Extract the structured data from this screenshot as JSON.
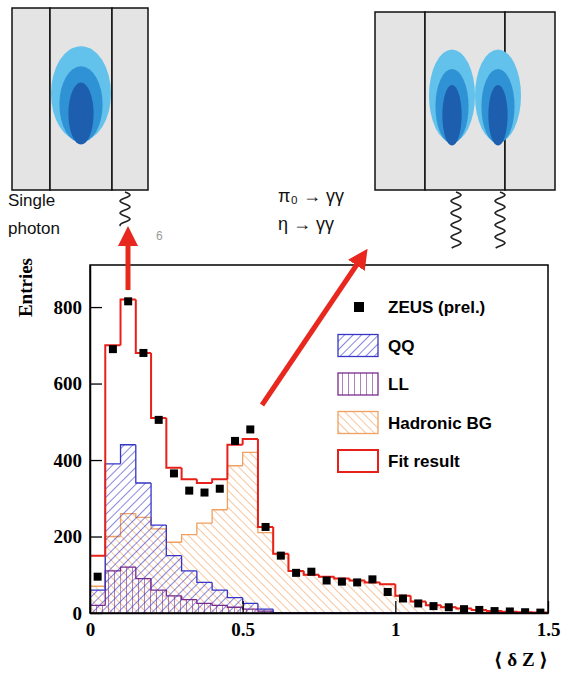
{
  "chart_data": {
    "type": "histogram",
    "x_label": "⟨ δ Z ⟩",
    "y_label": "Entries",
    "annotations": [
      "Single photon",
      "π₀ → γγ",
      "η → γγ",
      "6"
    ],
    "bins": [
      0,
      0.05,
      0.1,
      0.15,
      0.2,
      0.25,
      0.3,
      0.35,
      0.4,
      0.45,
      0.5,
      0.55,
      0.6,
      0.65,
      0.7,
      0.75,
      0.8,
      0.85,
      0.9,
      0.95,
      1,
      1.05,
      1.1,
      1.15,
      1.2,
      1.25,
      1.3,
      1.35,
      1.4,
      1.45,
      1.5
    ],
    "xlim": [
      0,
      1.5
    ],
    "ylim": [
      0,
      910
    ],
    "xticks": [
      0,
      0.5,
      1,
      1.5
    ],
    "yticks": [
      0,
      200,
      400,
      600,
      800
    ],
    "legend": "top-right",
    "series": [
      {
        "name": "ZEUS (prel.)",
        "type": "scatter",
        "marker": "square",
        "color": "#000000",
        "x": [
          0.025,
          0.075,
          0.125,
          0.175,
          0.225,
          0.275,
          0.325,
          0.375,
          0.425,
          0.475,
          0.525,
          0.575,
          0.625,
          0.675,
          0.725,
          0.775,
          0.825,
          0.875,
          0.925,
          0.975,
          1.025,
          1.075,
          1.125,
          1.175,
          1.225,
          1.275,
          1.325,
          1.375,
          1.425,
          1.475
        ],
        "values": [
          95,
          690,
          815,
          680,
          505,
          365,
          320,
          315,
          325,
          450,
          480,
          225,
          150,
          105,
          108,
          85,
          82,
          80,
          88,
          55,
          38,
          25,
          18,
          15,
          10,
          8,
          5,
          4,
          2,
          1
        ]
      },
      {
        "name": "QQ",
        "type": "bar",
        "color": "#3535c8",
        "values": [
          60,
          390,
          440,
          340,
          230,
          150,
          110,
          80,
          60,
          40,
          25,
          10,
          0,
          0,
          0,
          0,
          0,
          0,
          0,
          0,
          0,
          0,
          0,
          0,
          0,
          0,
          0,
          0,
          0,
          0
        ]
      },
      {
        "name": "LL",
        "type": "bar",
        "color": "#7a2a8a",
        "values": [
          20,
          110,
          120,
          90,
          60,
          45,
          35,
          25,
          20,
          15,
          10,
          5,
          0,
          0,
          0,
          0,
          0,
          0,
          0,
          0,
          0,
          0,
          0,
          0,
          0,
          0,
          0,
          0,
          0,
          0
        ]
      },
      {
        "name": "Hadronic BG",
        "type": "bar",
        "color": "#f0a060",
        "values": [
          70,
          200,
          260,
          250,
          220,
          185,
          205,
          235,
          270,
          385,
          420,
          210,
          155,
          110,
          100,
          95,
          90,
          85,
          80,
          75,
          45,
          30,
          20,
          15,
          12,
          8,
          5,
          3,
          2,
          1
        ]
      },
      {
        "name": "Fit result",
        "type": "step",
        "color": "#e8201a",
        "values": [
          150,
          700,
          820,
          680,
          510,
          380,
          350,
          340,
          350,
          440,
          455,
          225,
          155,
          110,
          100,
          95,
          90,
          85,
          80,
          75,
          45,
          30,
          20,
          15,
          12,
          8,
          5,
          3,
          2,
          1
        ]
      }
    ]
  }
}
